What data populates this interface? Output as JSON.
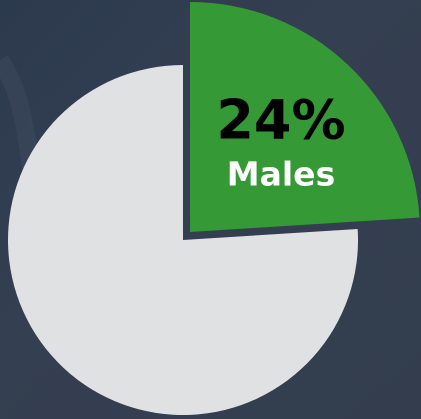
{
  "chart_data": {
    "type": "pie",
    "categories": [
      "Males",
      null
    ],
    "values": [
      24,
      76
    ],
    "value_labels": [
      "24%",
      null
    ],
    "colors": [
      "#359a35",
      "#e0e1e3"
    ]
  }
}
